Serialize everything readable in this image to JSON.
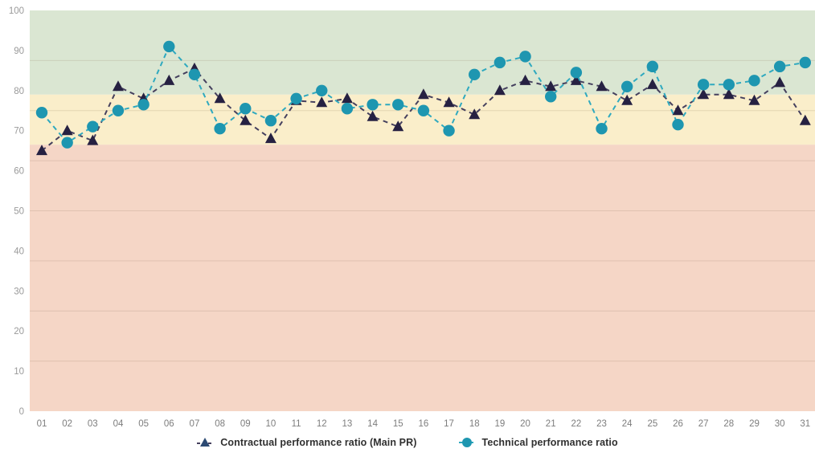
{
  "chart_data": {
    "type": "line",
    "title": "",
    "xlabel": "",
    "ylabel": "",
    "ylim": [
      0,
      100
    ],
    "y_ticks": [
      0,
      10,
      20,
      30,
      40,
      50,
      60,
      70,
      80,
      90,
      100
    ],
    "minor_gridlines_at": [
      12.5,
      25,
      37.5,
      50,
      62.5,
      75,
      87.5
    ],
    "grid": true,
    "legend_position": "bottom",
    "x_labels": [
      "01",
      "02",
      "03",
      "04",
      "05",
      "06",
      "07",
      "08",
      "09",
      "10",
      "11",
      "12",
      "13",
      "14",
      "15",
      "16",
      "17",
      "18",
      "19",
      "20",
      "21",
      "22",
      "23",
      "24",
      "25",
      "26",
      "27",
      "28",
      "29",
      "30",
      "31"
    ],
    "bands": [
      {
        "from": 79,
        "to": 100,
        "color": "#dae6d2"
      },
      {
        "from": 66.5,
        "to": 79,
        "color": "#faeeca"
      },
      {
        "from": 0,
        "to": 66.5,
        "color": "#f5d6c6"
      }
    ],
    "series": [
      {
        "name": "Contractual performance ratio (Main PR)",
        "marker": "triangle",
        "color": "#262142",
        "line_color": "#45405e",
        "values": [
          65,
          70,
          67.5,
          81,
          78,
          82.5,
          85.5,
          78,
          72.5,
          68,
          77.5,
          77,
          78,
          73.5,
          71,
          79,
          77,
          74,
          80,
          82.5,
          81,
          82.5,
          81,
          77.5,
          81.5,
          75,
          79,
          79,
          77.5,
          82,
          72.5
        ]
      },
      {
        "name": "Technical performance ratio",
        "marker": "circle",
        "color": "#1e96b0",
        "line_color": "#2fa9bf",
        "values": [
          74.5,
          67,
          71,
          75,
          76.5,
          91,
          84,
          70.5,
          75.5,
          72.5,
          78,
          80,
          75.5,
          76.5,
          76.5,
          75,
          70,
          84,
          87,
          88.5,
          78.5,
          84.5,
          70.5,
          81,
          86,
          71.5,
          81.5,
          81.5,
          82.5,
          86,
          87
        ]
      }
    ]
  },
  "colors": {
    "background": "#ffffff",
    "gridline": "rgba(125,105,80,0.18)",
    "y_tick_label": "#9a9a9a",
    "x_tick_label": "#7d7d7d",
    "legend_text": "#303030"
  }
}
